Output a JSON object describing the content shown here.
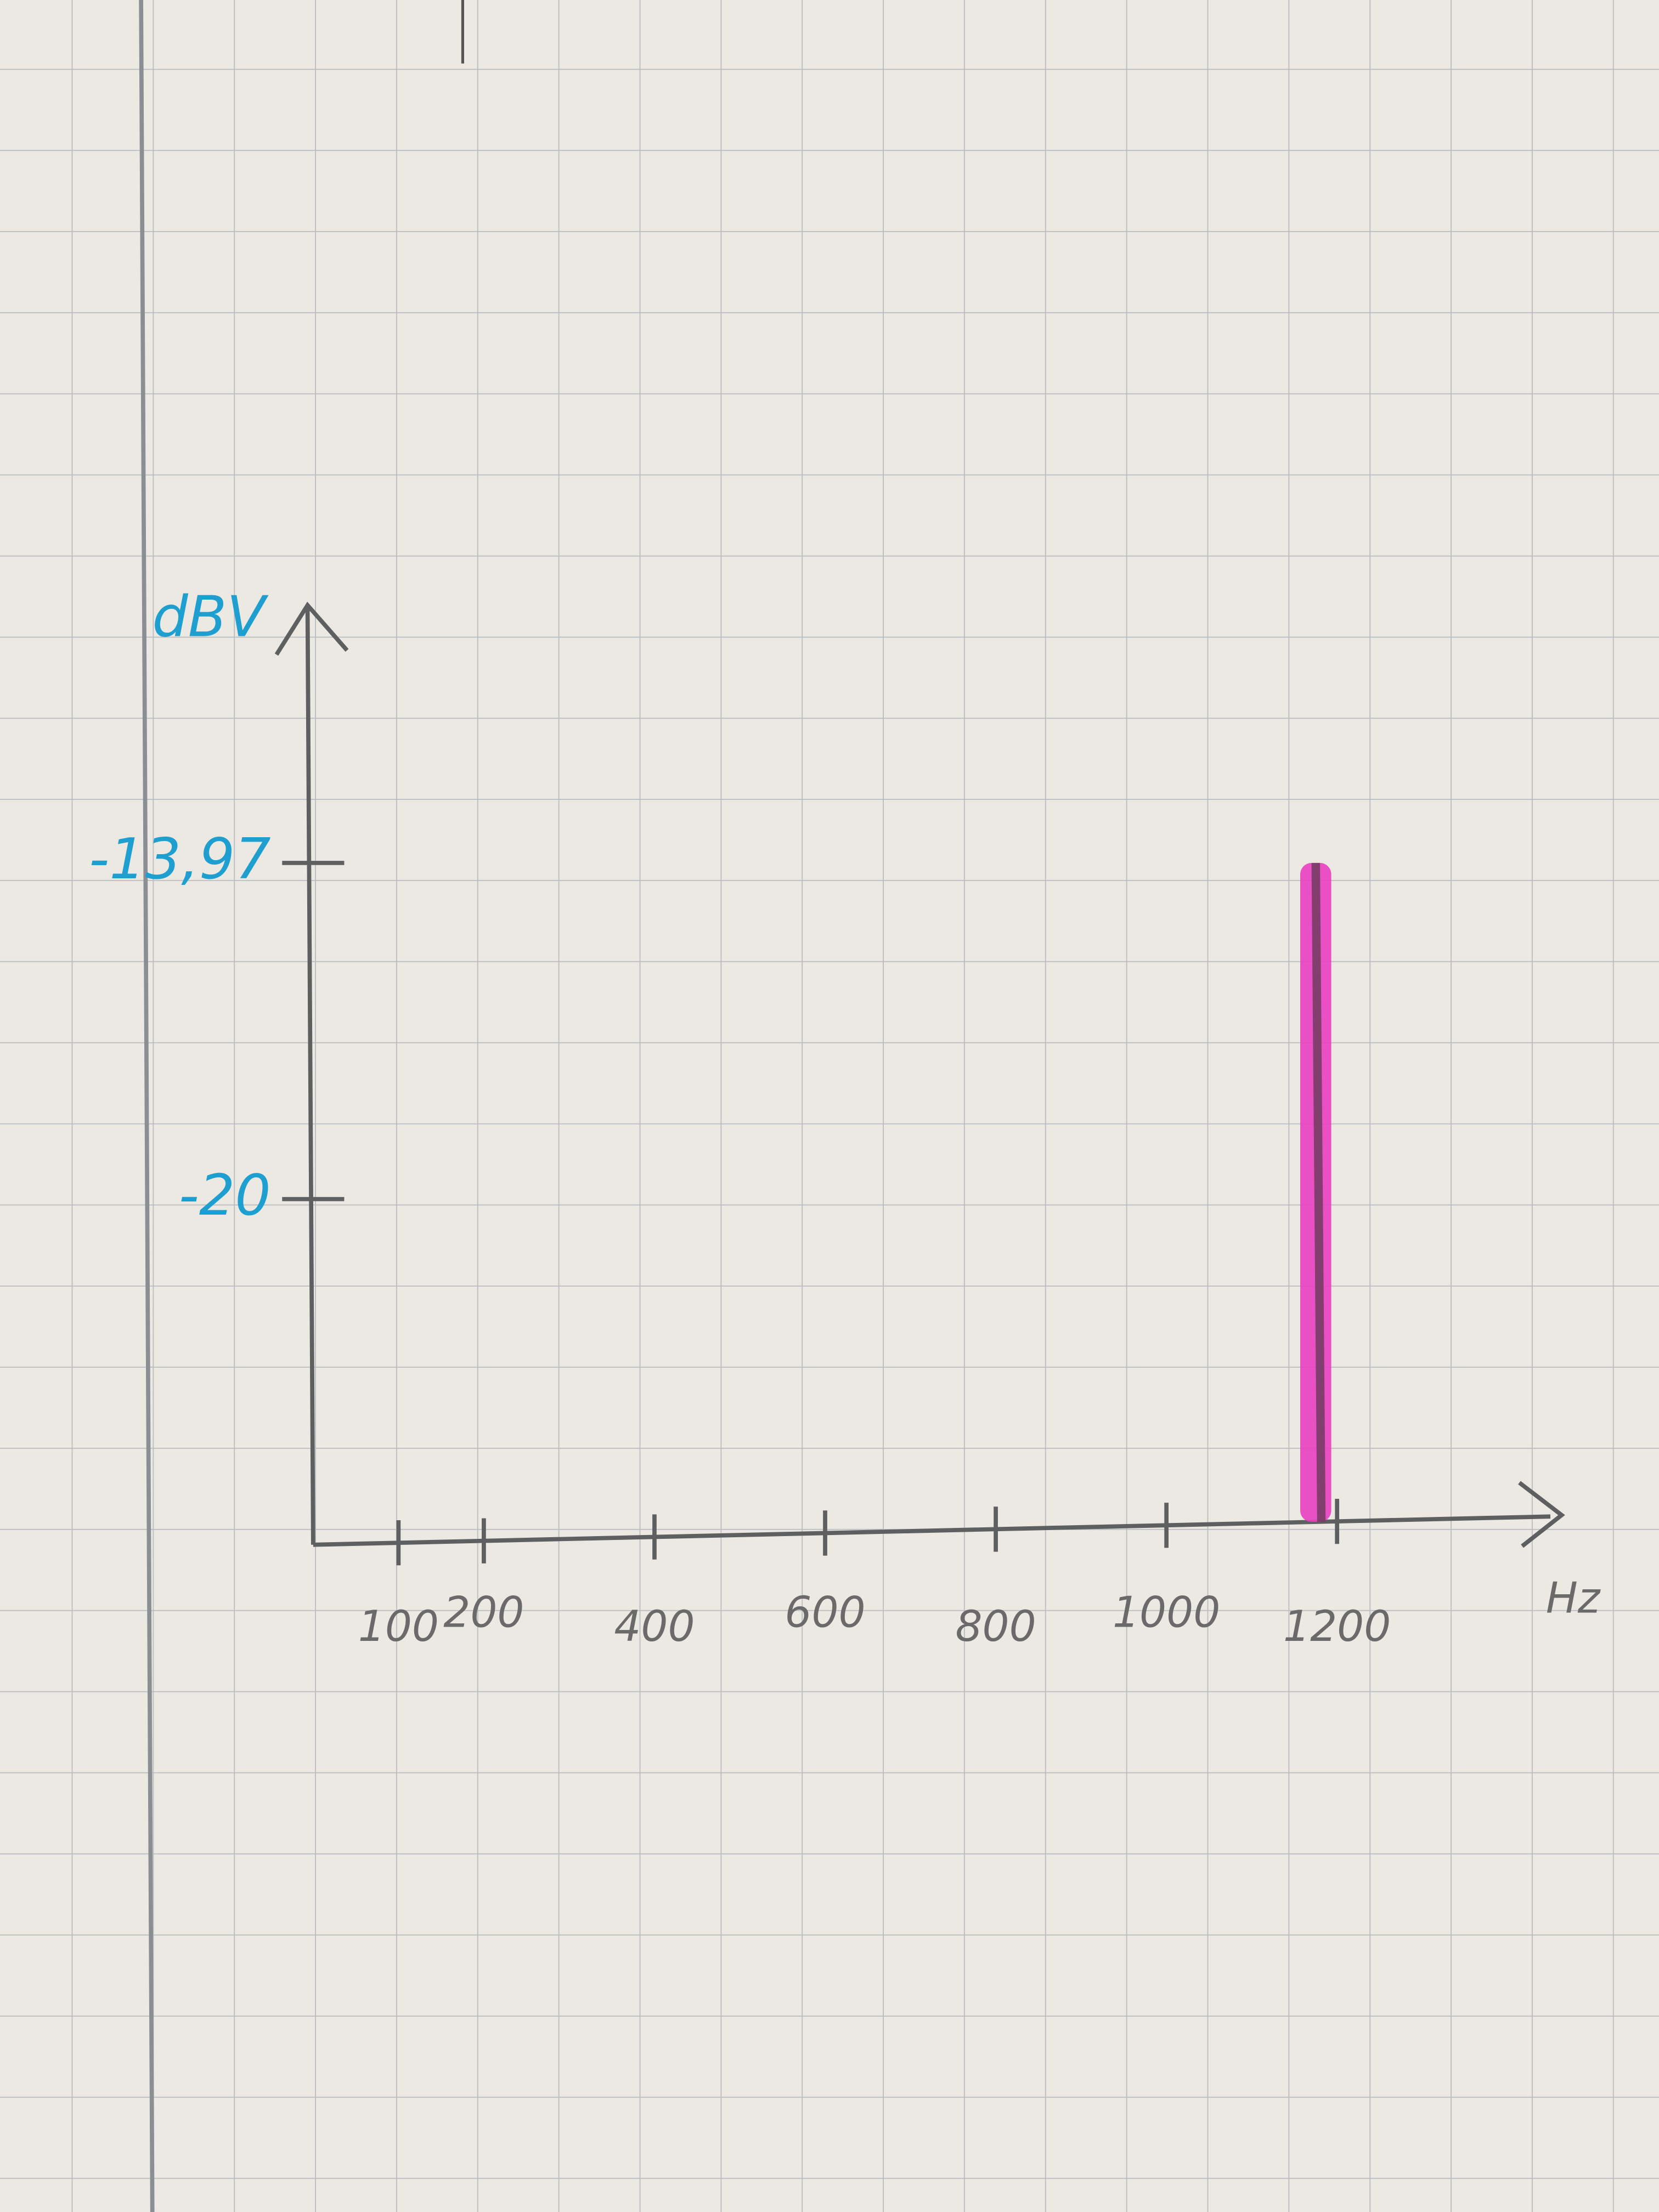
{
  "chart_data": {
    "type": "stem",
    "y_label": "dBV",
    "x_label": "Hz",
    "x": [
      1175
    ],
    "values": [
      -13.97
    ],
    "color": "#e83fbf",
    "xlim": [
      0,
      1450
    ],
    "xticks": [
      100,
      200,
      400,
      600,
      800,
      1000,
      1200
    ],
    "ylim": [
      -26.2,
      -9.6
    ],
    "yticks": [
      {
        "value": -13.97,
        "label": "-13,97"
      },
      -20
    ]
  }
}
